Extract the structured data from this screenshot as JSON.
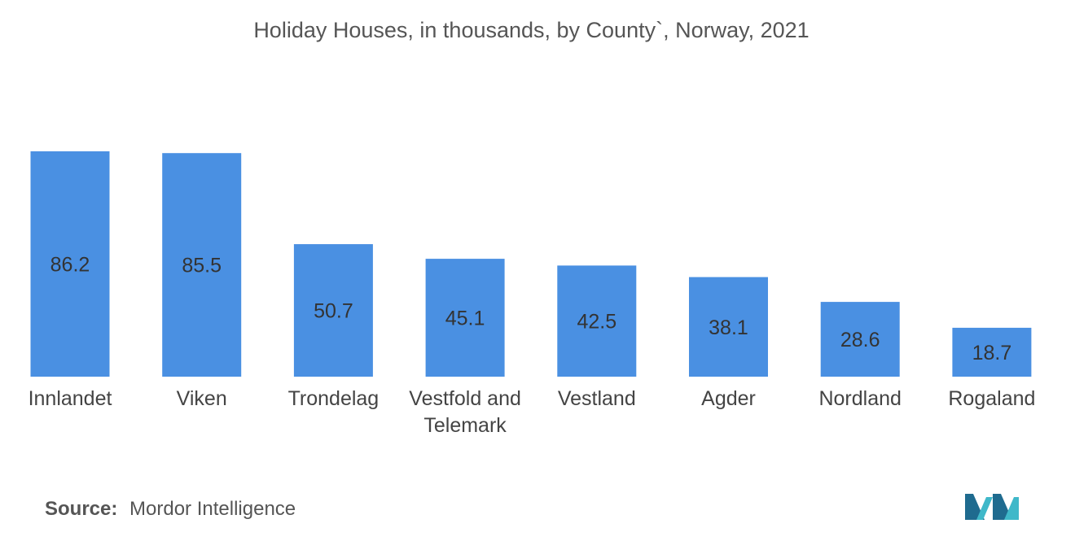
{
  "title": "Holiday Houses, in thousands, by County`, Norway, 2021",
  "source": {
    "label": "Source:",
    "text": "Mordor Intelligence"
  },
  "colors": {
    "bar": "#4A90E2",
    "value_label": "#333333",
    "category_label": "#444444",
    "logo_dark": "#1f6b8f",
    "logo_light": "#3fb8c9"
  },
  "logo_icon": "mordor-intelligence-logo",
  "chart_data": {
    "type": "bar",
    "categories": [
      "Innlandet",
      "Viken",
      "Trondelag",
      "Vestfold and Telemark",
      "Vestland",
      "Agder",
      "Nordland",
      "Rogaland"
    ],
    "category_lines": [
      [
        "Innlandet"
      ],
      [
        "Viken"
      ],
      [
        "Trondelag"
      ],
      [
        "Vestfold and",
        "Telemark"
      ],
      [
        "Vestland"
      ],
      [
        "Agder"
      ],
      [
        "Nordland"
      ],
      [
        "Rogaland"
      ]
    ],
    "values": [
      86.2,
      85.5,
      50.7,
      45.1,
      42.5,
      38.1,
      28.6,
      18.7
    ],
    "value_labels": [
      "86.2",
      "85.5",
      "50.7",
      "45.1",
      "42.5",
      "38.1",
      "28.6",
      "18.7"
    ],
    "title": "Holiday Houses, in thousands, by County`, Norway, 2021",
    "xlabel": "",
    "ylabel": "",
    "ylim": [
      0,
      86.2
    ],
    "grid": false,
    "legend": "none"
  }
}
